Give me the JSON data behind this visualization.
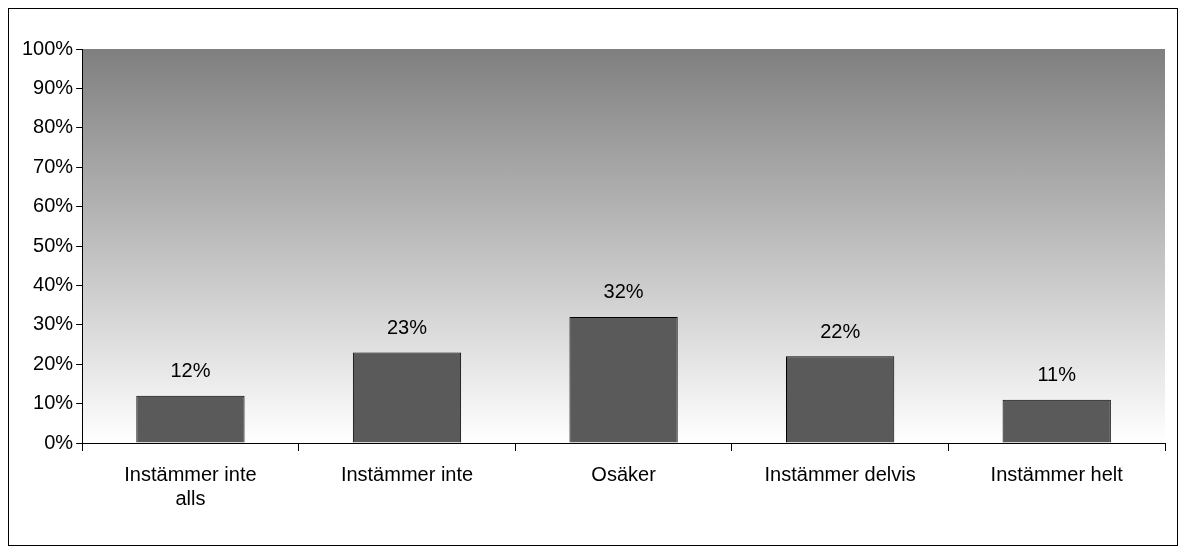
{
  "chart_data": {
    "type": "bar",
    "categories": [
      "Instämmer inte alls",
      "Instämmer inte",
      "Osäker",
      "Instämmer delvis",
      "Instämmer helt"
    ],
    "values": [
      12,
      23,
      32,
      22,
      11
    ],
    "value_labels": [
      "12%",
      "23%",
      "32%",
      "22%",
      "11%"
    ],
    "color": "#5a5a5a",
    "ylim": [
      0,
      100
    ],
    "yticks": [
      {
        "value": 0,
        "label": "0%"
      },
      {
        "value": 10,
        "label": "10%"
      },
      {
        "value": 20,
        "label": "20%"
      },
      {
        "value": 30,
        "label": "30%"
      },
      {
        "value": 40,
        "label": "40%"
      },
      {
        "value": 50,
        "label": "50%"
      },
      {
        "value": 60,
        "label": "60%"
      },
      {
        "value": 70,
        "label": "70%"
      },
      {
        "value": 80,
        "label": "80%"
      },
      {
        "value": 90,
        "label": "90%"
      },
      {
        "value": 100,
        "label": "100%"
      }
    ],
    "grid": false,
    "legend": false
  }
}
